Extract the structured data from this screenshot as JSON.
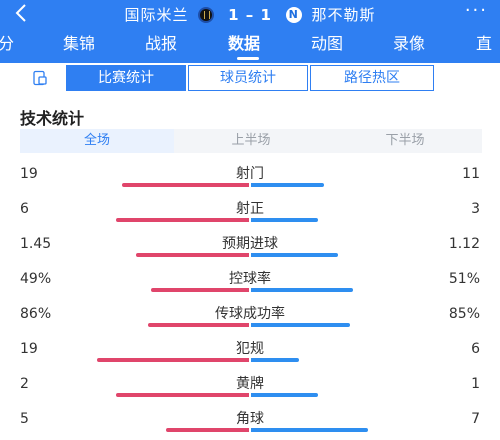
{
  "header": {
    "back_icon": "chevron-left-icon",
    "home_team": "国际米兰",
    "home_logo": "inter-logo",
    "score": "1 – 1",
    "away_logo": "napoli-logo",
    "away_logo_letter": "N",
    "away_team": "那不勒斯",
    "more_icon": "more-dots-icon",
    "more_symbol": "···"
  },
  "tabs": [
    "分",
    "集锦",
    "战报",
    "数据",
    "动图",
    "录像",
    "直"
  ],
  "active_tab": "数据",
  "subtabs": [
    "比赛统计",
    "球员统计",
    "路径热区"
  ],
  "active_subtab": "比赛统计",
  "section_title": "技术统计",
  "periods": [
    "全场",
    "上半场",
    "下半场"
  ],
  "active_period": "全场",
  "colors": {
    "header": "#2f7ff2",
    "home_bar": "#e0456b",
    "away_bar": "#2e8ef0"
  },
  "stats": [
    {
      "name": "射门",
      "home": "19",
      "away": "11",
      "home_share": 0.633,
      "away_share": 0.367
    },
    {
      "name": "射正",
      "home": "6",
      "away": "3",
      "home_share": 0.667,
      "away_share": 0.333
    },
    {
      "name": "预期进球",
      "home": "1.45",
      "away": "1.12",
      "home_share": 0.564,
      "away_share": 0.436
    },
    {
      "name": "控球率",
      "home": "49%",
      "away": "51%",
      "home_share": 0.49,
      "away_share": 0.51
    },
    {
      "name": "传球成功率",
      "home": "86%",
      "away": "85%",
      "home_share": 0.503,
      "away_share": 0.497
    },
    {
      "name": "犯规",
      "home": "19",
      "away": "6",
      "home_share": 0.76,
      "away_share": 0.24
    },
    {
      "name": "黄牌",
      "home": "2",
      "away": "1",
      "home_share": 0.667,
      "away_share": 0.333
    },
    {
      "name": "角球",
      "home": "5",
      "away": "7",
      "home_share": 0.417,
      "away_share": 0.583
    }
  ]
}
